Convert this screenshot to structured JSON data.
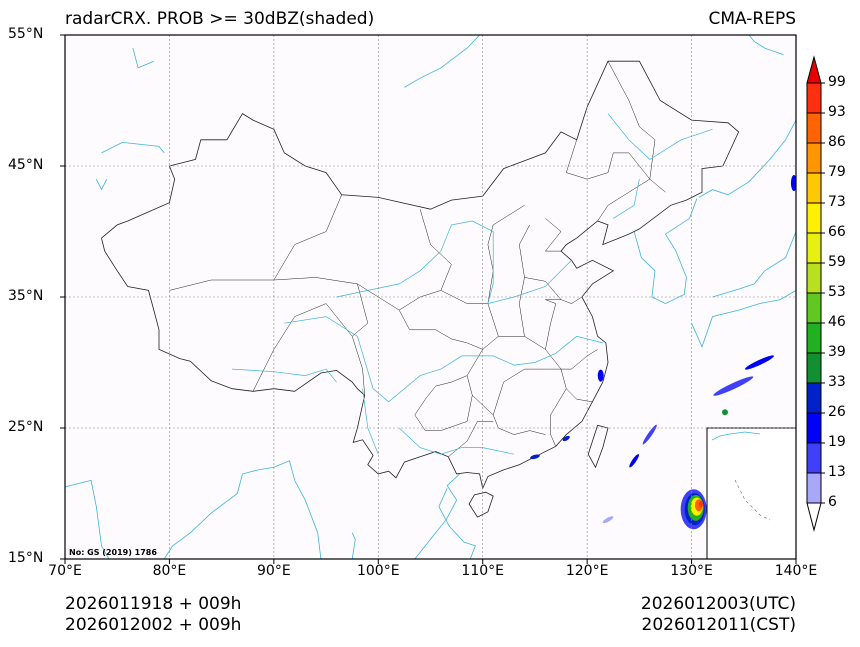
{
  "title_left": "radarCRX. PROB >= 30dBZ(shaded)",
  "title_right": "CMA-REPS",
  "map_note": "No: GS (2019) 1786",
  "extent": {
    "lon": [
      70,
      140
    ],
    "lat": [
      15,
      55
    ]
  },
  "lon_ticks": [
    {
      "v": 70,
      "label": "70°E"
    },
    {
      "v": 80,
      "label": "80°E"
    },
    {
      "v": 90,
      "label": "90°E"
    },
    {
      "v": 100,
      "label": "100°E"
    },
    {
      "v": 110,
      "label": "110°E"
    },
    {
      "v": 120,
      "label": "120°E"
    },
    {
      "v": 130,
      "label": "130°E"
    },
    {
      "v": 140,
      "label": "140°E"
    }
  ],
  "lat_ticks": [
    {
      "v": 15,
      "label": "15°N"
    },
    {
      "v": 25,
      "label": "25°N"
    },
    {
      "v": 35,
      "label": "35°N"
    },
    {
      "v": 45,
      "label": "45°N"
    },
    {
      "v": 55,
      "label": "55°N"
    }
  ],
  "footer": {
    "init_utc": "2026011918  +  009h",
    "init_cst": "2026012002  +  009h",
    "valid_utc": "2026012003(UTC)",
    "valid_cst": "2026012011(CST)"
  },
  "colorbar": {
    "levels": [
      "6",
      "13",
      "19",
      "26",
      "33",
      "39",
      "46",
      "53",
      "59",
      "66",
      "73",
      "79",
      "86",
      "93",
      "99"
    ],
    "colors": [
      "#a8a8f8",
      "#4040f8",
      "#0000f8",
      "#0020c8",
      "#109030",
      "#20b020",
      "#60c820",
      "#b8e020",
      "#e8f010",
      "#fff000",
      "#ffc800",
      "#ff9600",
      "#ff6400",
      "#ff3010"
    ],
    "over_color": "#e80000",
    "under_color": "#ffffff"
  },
  "colors": {
    "border": "#222222",
    "coast": "#3cb4dc",
    "grid": "#888888",
    "background": "#fdfbfd"
  }
}
